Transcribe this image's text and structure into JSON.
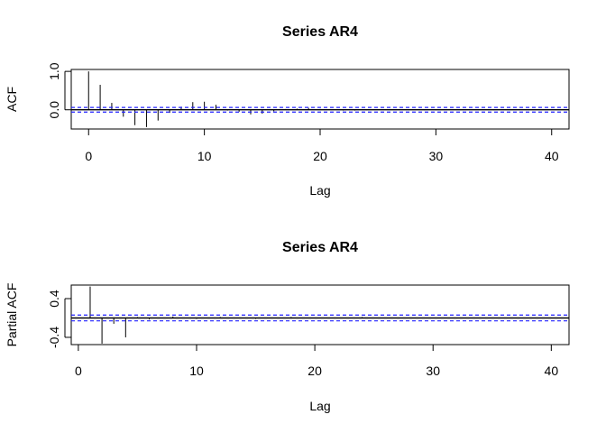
{
  "chart_data": [
    {
      "type": "bar",
      "title": "Series  AR4",
      "xlabel": "Lag",
      "ylabel": "ACF",
      "xlim": [
        -1.5,
        41.5
      ],
      "ylim": [
        -0.5,
        1.05
      ],
      "x_ticks": [
        0,
        10,
        20,
        30,
        40
      ],
      "y_ticks": [
        {
          "value": 0.0,
          "label": "0.0"
        },
        {
          "value": 1.0,
          "label": "1.0"
        }
      ],
      "x": [
        0,
        1,
        2,
        3,
        4,
        5,
        6,
        7,
        8,
        9,
        10,
        11,
        12,
        13,
        14,
        15,
        16,
        17,
        18,
        19,
        20,
        21,
        22,
        23,
        24,
        25,
        26,
        27,
        28,
        29,
        30,
        31,
        32,
        33,
        34,
        35,
        36,
        37,
        38,
        39,
        40,
        41
      ],
      "values": [
        1.0,
        0.65,
        0.18,
        -0.18,
        -0.4,
        -0.45,
        -0.28,
        -0.08,
        0.08,
        0.2,
        0.21,
        0.13,
        -0.02,
        -0.05,
        -0.12,
        -0.1,
        -0.04,
        0.02,
        0.03,
        0.05,
        0.02,
        -0.01,
        -0.02,
        -0.02,
        -0.01,
        0.0,
        0.01,
        0.01,
        0.0,
        -0.01,
        -0.01,
        0.0,
        0.01,
        0.0,
        0.0,
        -0.01,
        0.0,
        0.0,
        0.01,
        0.0,
        0.0,
        0.0
      ],
      "confidence_bound": 0.06,
      "colors": {
        "zero_line": "#000000",
        "confidence": "#2020ff",
        "bars": "#000000"
      }
    },
    {
      "type": "bar",
      "title": "Series  AR4",
      "xlabel": "Lag",
      "ylabel": "Partial ACF",
      "xlim": [
        -0.6,
        41.5
      ],
      "ylim": [
        -0.55,
        0.68
      ],
      "x_ticks": [
        0,
        10,
        20,
        30,
        40
      ],
      "y_ticks": [
        {
          "value": -0.4,
          "label": "-0.4"
        },
        {
          "value": 0.4,
          "label": "0.4"
        }
      ],
      "x": [
        1,
        2,
        3,
        4,
        5,
        6,
        7,
        8,
        9,
        10,
        11,
        12,
        13,
        14,
        15,
        16,
        17,
        18,
        19,
        20,
        21,
        22,
        23,
        24,
        25,
        26,
        27,
        28,
        29,
        30,
        31,
        32,
        33,
        34,
        35,
        36,
        37,
        38,
        39,
        40,
        41
      ],
      "values": [
        0.65,
        -0.53,
        -0.12,
        -0.4,
        0.02,
        -0.03,
        0.01,
        0.03,
        0.0,
        -0.02,
        0.01,
        0.02,
        -0.01,
        0.0,
        -0.02,
        0.01,
        0.0,
        0.02,
        -0.01,
        0.0,
        0.01,
        0.0,
        -0.01,
        0.02,
        0.0,
        0.0,
        -0.01,
        0.01,
        0.0,
        0.0,
        0.01,
        -0.01,
        0.0,
        0.0,
        0.01,
        0.0,
        -0.01,
        0.0,
        0.0,
        0.01,
        0.0
      ],
      "confidence_bound": 0.06,
      "colors": {
        "zero_line": "#000000",
        "confidence": "#2020ff",
        "bars": "#000000"
      }
    }
  ]
}
